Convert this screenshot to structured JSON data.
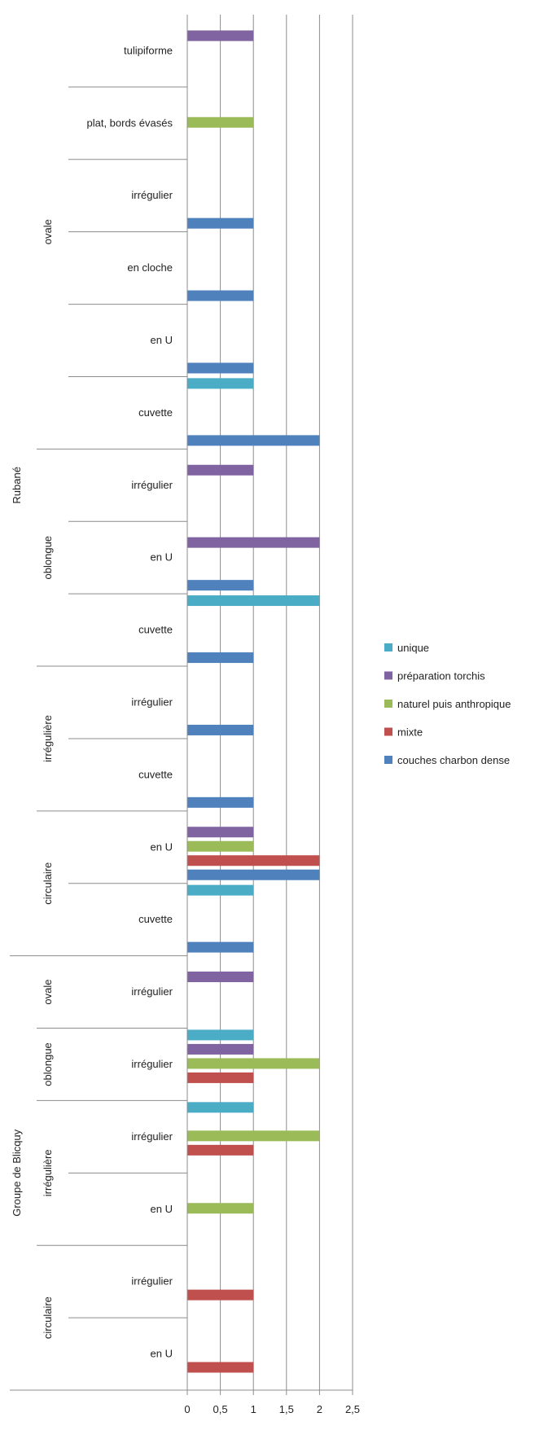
{
  "chart_data": {
    "type": "bar",
    "orientation": "horizontal",
    "title": "",
    "xlabel": "",
    "ylabel": "",
    "xlim": [
      0,
      2.5
    ],
    "x_ticks": [
      "0",
      "0,5",
      "1",
      "1,5",
      "2",
      "2,5"
    ],
    "grid": "vertical",
    "legend_position": "right",
    "series": [
      {
        "key": "unique",
        "name": "unique",
        "color": "#4bacc6"
      },
      {
        "key": "preparation",
        "name": "préparation torchis",
        "color": "#8064a2"
      },
      {
        "key": "naturel",
        "name": "naturel puis anthropique",
        "color": "#9bbb59"
      },
      {
        "key": "mixte",
        "name": "mixte",
        "color": "#c0504d"
      },
      {
        "key": "couches",
        "name": "couches charbon dense",
        "color": "#4f81bd"
      }
    ],
    "categories": [
      {
        "label": "tulipiforme",
        "values": {
          "preparation": 1
        }
      },
      {
        "label": "plat, bords évasés",
        "values": {
          "naturel": 1
        }
      },
      {
        "label": "irrégulier",
        "values": {
          "couches": 1
        }
      },
      {
        "label": "en cloche",
        "values": {
          "couches": 1
        }
      },
      {
        "label": "en  U",
        "values": {
          "couches": 1
        }
      },
      {
        "label": "cuvette",
        "values": {
          "unique": 1,
          "couches": 2
        }
      },
      {
        "label": "irrégulier",
        "values": {
          "preparation": 1
        }
      },
      {
        "label": "en  U",
        "values": {
          "preparation": 2,
          "couches": 1
        }
      },
      {
        "label": "cuvette",
        "values": {
          "unique": 2,
          "couches": 1
        }
      },
      {
        "label": "irrégulier",
        "values": {
          "couches": 1
        }
      },
      {
        "label": "cuvette",
        "values": {
          "couches": 1
        }
      },
      {
        "label": "en  U",
        "values": {
          "preparation": 1,
          "naturel": 1,
          "mixte": 2,
          "couches": 2
        }
      },
      {
        "label": "cuvette",
        "values": {
          "unique": 1,
          "couches": 1
        }
      },
      {
        "label": "irrégulier",
        "values": {
          "preparation": 1
        }
      },
      {
        "label": "irrégulier",
        "values": {
          "unique": 1,
          "preparation": 1,
          "naturel": 2,
          "mixte": 1
        }
      },
      {
        "label": "irrégulier",
        "values": {
          "unique": 1,
          "naturel": 2,
          "mixte": 1
        }
      },
      {
        "label": "en  U",
        "values": {
          "naturel": 1
        }
      },
      {
        "label": "irrégulier",
        "values": {
          "mixte": 1
        }
      },
      {
        "label": "en  U",
        "values": {
          "mixte": 1
        }
      }
    ],
    "shape_groups": [
      {
        "label": "ovale",
        "categories": [
          0,
          5
        ]
      },
      {
        "label": "oblongue",
        "categories": [
          6,
          8
        ]
      },
      {
        "label": "irrégulière",
        "categories": [
          9,
          10
        ]
      },
      {
        "label": "circulaire",
        "categories": [
          11,
          12
        ]
      },
      {
        "label": "ovale",
        "categories": [
          13,
          13
        ]
      },
      {
        "label": "oblongue",
        "categories": [
          14,
          14
        ]
      },
      {
        "label": "irrégulière",
        "categories": [
          15,
          16
        ]
      },
      {
        "label": "circulaire",
        "categories": [
          17,
          18
        ]
      }
    ],
    "culture_groups": [
      {
        "label": "Rubané",
        "categories": [
          0,
          12
        ]
      },
      {
        "label": "Groupe de Blicquy",
        "categories": [
          13,
          18
        ]
      }
    ]
  }
}
